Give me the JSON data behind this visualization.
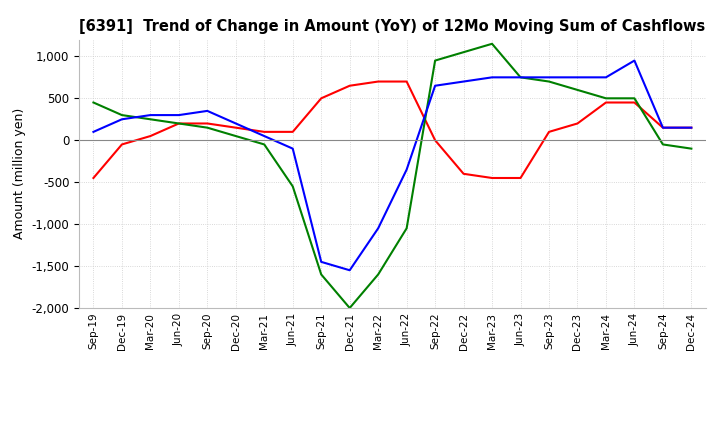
{
  "title": "[6391]  Trend of Change in Amount (YoY) of 12Mo Moving Sum of Cashflows",
  "ylabel": "Amount (million yen)",
  "ylim": [
    -2000,
    1200
  ],
  "yticks": [
    -2000,
    -1500,
    -1000,
    -500,
    0,
    500,
    1000
  ],
  "x_labels": [
    "Sep-19",
    "Dec-19",
    "Mar-20",
    "Jun-20",
    "Sep-20",
    "Dec-20",
    "Mar-21",
    "Jun-21",
    "Sep-21",
    "Dec-21",
    "Mar-22",
    "Jun-22",
    "Sep-22",
    "Dec-22",
    "Mar-23",
    "Jun-23",
    "Sep-23",
    "Dec-23",
    "Mar-24",
    "Jun-24",
    "Sep-24",
    "Dec-24"
  ],
  "operating": [
    -450,
    -50,
    50,
    200,
    200,
    150,
    100,
    100,
    500,
    650,
    700,
    700,
    0,
    -400,
    -450,
    -450,
    100,
    200,
    450,
    450,
    150,
    150
  ],
  "investing": [
    450,
    300,
    250,
    200,
    150,
    50,
    -50,
    -550,
    -1600,
    -2000,
    -1600,
    -1050,
    950,
    1050,
    1150,
    750,
    700,
    600,
    500,
    500,
    -50,
    -100
  ],
  "free": [
    100,
    250,
    300,
    300,
    350,
    200,
    50,
    -100,
    -1450,
    -1550,
    -1050,
    -350,
    650,
    700,
    750,
    750,
    750,
    750,
    750,
    950,
    150,
    150
  ],
  "line_colors": {
    "operating": "#ff0000",
    "investing": "#008000",
    "free": "#0000ff"
  },
  "background_color": "#ffffff",
  "grid_color": "#cccccc"
}
